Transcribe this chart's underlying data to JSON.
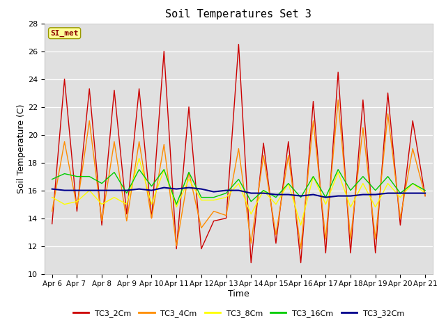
{
  "title": "Soil Temperatures Set 3",
  "xlabel": "Time",
  "ylabel": "Soil Temperature (C)",
  "ylim": [
    10,
    28
  ],
  "yticks": [
    10,
    12,
    14,
    16,
    18,
    20,
    22,
    24,
    26,
    28
  ],
  "background_color": "#ffffff",
  "plot_bg_color": "#e0e0e0",
  "legend_label": "SI_met",
  "series_order": [
    "TC3_2Cm",
    "TC3_4Cm",
    "TC3_8Cm",
    "TC3_16Cm",
    "TC3_32Cm"
  ],
  "series_colors": [
    "#cc0000",
    "#ff8c00",
    "#ffff00",
    "#00cc00",
    "#00008b"
  ],
  "series_lw": [
    1.0,
    1.0,
    1.0,
    1.0,
    1.5
  ],
  "xtick_labels": [
    "Apr 6",
    "Apr 7 ",
    "Apr 8",
    "Apr 9",
    "Apr 10",
    "Apr 11",
    "Apr 12",
    "Apr 13",
    "Apr 14",
    "Apr 15",
    "Apr 16",
    "Apr 17",
    "Apr 18",
    "Apr 19",
    "Apr 20",
    "Apr 21"
  ],
  "TC3_2Cm": [
    13.6,
    24.0,
    14.5,
    23.3,
    13.5,
    23.2,
    14.3,
    23.3,
    14.0,
    26.0,
    11.8,
    22.0,
    11.8,
    13.8,
    14.0,
    26.5,
    10.8,
    19.4,
    12.2,
    19.5,
    10.8,
    22.4,
    11.5,
    24.5,
    11.5,
    22.5,
    11.5,
    23.0,
    13.5,
    21.0,
    15.6
  ],
  "TC3_4Cm": [
    14.5,
    19.5,
    14.8,
    21.0,
    13.8,
    19.5,
    13.8,
    19.5,
    14.0,
    19.3,
    12.0,
    17.3,
    13.3,
    14.5,
    14.2,
    19.0,
    12.2,
    18.5,
    12.8,
    18.5,
    11.8,
    21.0,
    12.5,
    22.5,
    12.5,
    20.5,
    12.5,
    21.5,
    14.0,
    19.0,
    15.6
  ],
  "TC3_8Cm": [
    15.5,
    15.0,
    15.2,
    16.0,
    15.0,
    15.5,
    15.0,
    18.3,
    15.0,
    17.5,
    14.8,
    16.8,
    15.3,
    15.3,
    15.5,
    16.5,
    14.3,
    16.0,
    15.0,
    16.5,
    13.5,
    17.0,
    15.0,
    17.3,
    14.8,
    16.5,
    14.8,
    16.5,
    15.5,
    16.5,
    15.8
  ],
  "TC3_16Cm": [
    16.8,
    17.2,
    17.0,
    17.0,
    16.5,
    17.3,
    15.8,
    17.5,
    16.3,
    17.5,
    15.0,
    17.3,
    15.5,
    15.5,
    15.8,
    16.8,
    15.2,
    16.0,
    15.5,
    16.5,
    15.5,
    17.0,
    15.5,
    17.5,
    16.0,
    17.0,
    16.0,
    17.0,
    15.8,
    16.5,
    16.0
  ],
  "TC3_32Cm": [
    16.1,
    16.0,
    16.0,
    16.0,
    16.0,
    16.0,
    16.0,
    16.1,
    16.0,
    16.2,
    16.1,
    16.2,
    16.1,
    15.9,
    16.0,
    16.0,
    15.8,
    15.8,
    15.7,
    15.7,
    15.6,
    15.7,
    15.5,
    15.6,
    15.6,
    15.7,
    15.7,
    15.8,
    15.8,
    15.8,
    15.8
  ]
}
